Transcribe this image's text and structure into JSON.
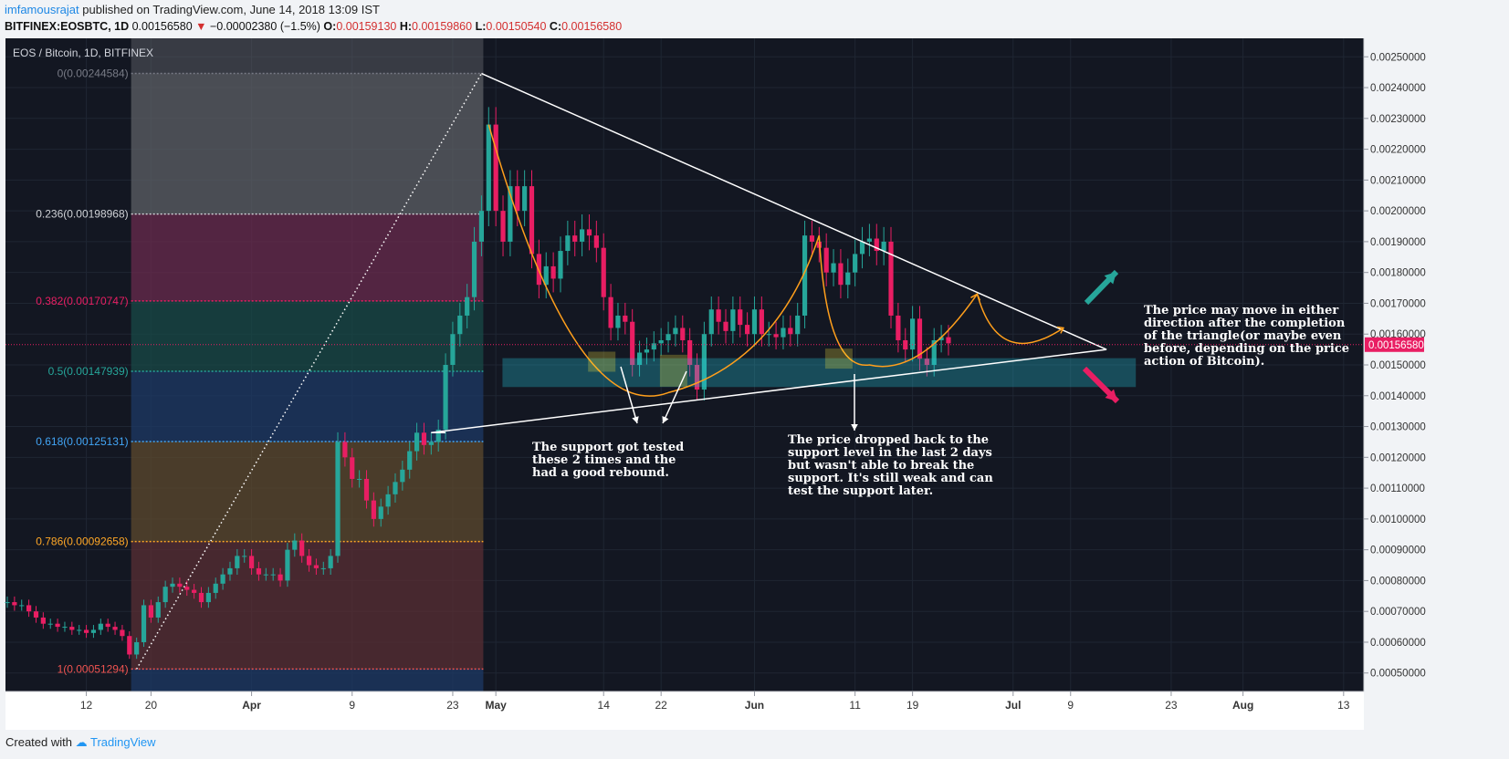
{
  "header": {
    "user": "imfamousrajat",
    "published": "published on TradingView.com, June 14, 2018 13:09 IST",
    "symbol": "BITFINEX:EOSBTC, 1D",
    "last": "0.00156580",
    "change": "−0.00002380 (−1.5%)",
    "o_label": "O:",
    "o": "0.00159130",
    "h_label": "H:",
    "h": "0.00159860",
    "l_label": "L:",
    "l": "0.00150540",
    "c_label": "C:",
    "c": "0.00156580"
  },
  "footer": {
    "created_with": "Created with",
    "brand": "TradingView"
  },
  "colors": {
    "background": "#131722",
    "up": "#26a69a",
    "down": "#e91e63",
    "trend": "#ffffff",
    "arc": "#ff9f1c",
    "support": "#26c6da",
    "highlight": "#ffeb3b"
  },
  "chart_data": {
    "type": "candlestick",
    "title": "EOS / Bitcoin, 1D, BITFINEX",
    "ylim": [
      0.00044,
      0.00256
    ],
    "yticks": [
      0.0005,
      0.0006,
      0.0007,
      0.0008,
      0.0009,
      0.001,
      0.0011,
      0.0012,
      0.0013,
      0.0014,
      0.0015,
      0.0016,
      0.0017,
      0.0018,
      0.0019,
      0.002,
      0.0021,
      0.0022,
      0.0023,
      0.0024,
      0.0025
    ],
    "ytick_labels": [
      "0.00050000",
      "0.00060000",
      "0.00070000",
      "0.00080000",
      "0.00090000",
      "0.00100000",
      "0.00110000",
      "0.00120000",
      "0.00130000",
      "0.00140000",
      "0.00150000",
      "0.00160000",
      "0.00170000",
      "0.00180000",
      "0.00190000",
      "0.00200000",
      "0.00210000",
      "0.00220000",
      "0.00230000",
      "0.00240000",
      "0.00250000"
    ],
    "current_price": "0.00156580",
    "xtick_labels": [
      "12",
      "20",
      "Apr",
      "9",
      "23",
      "May",
      "14",
      "22",
      "Jun",
      "11",
      "19",
      "Jul",
      "9",
      "23",
      "Aug",
      "13"
    ],
    "closes": [
      0.00073,
      0.00072,
      0.00072,
      0.0007,
      0.00068,
      0.00066,
      0.00066,
      0.00065,
      0.00065,
      0.00064,
      0.00064,
      0.00063,
      0.00064,
      0.00066,
      0.00065,
      0.00064,
      0.00062,
      0.00056,
      0.0006,
      0.00072,
      0.00068,
      0.00073,
      0.00078,
      0.00079,
      0.00078,
      0.00077,
      0.00076,
      0.00073,
      0.00076,
      0.00079,
      0.00082,
      0.00084,
      0.00088,
      0.00088,
      0.00084,
      0.00082,
      0.00082,
      0.00082,
      0.0008,
      0.0009,
      0.00093,
      0.00088,
      0.00085,
      0.00084,
      0.00084,
      0.00088,
      0.00125,
      0.0012,
      0.00113,
      0.00113,
      0.00106,
      0.001,
      0.00104,
      0.00108,
      0.00112,
      0.00116,
      0.00122,
      0.00128,
      0.00124,
      0.00125,
      0.00129,
      0.0015,
      0.0016,
      0.00166,
      0.00172,
      0.0019,
      0.002,
      0.00228,
      0.002,
      0.0019,
      0.00208,
      0.002,
      0.00208,
      0.00186,
      0.00176,
      0.00182,
      0.00178,
      0.00187,
      0.00192,
      0.0019,
      0.00194,
      0.00192,
      0.00188,
      0.00172,
      0.00162,
      0.00166,
      0.00164,
      0.0015,
      0.00154,
      0.00155,
      0.00157,
      0.00158,
      0.0016,
      0.00162,
      0.00158,
      0.0015,
      0.00142,
      0.0016,
      0.00168,
      0.00164,
      0.00161,
      0.00168,
      0.00163,
      0.0016,
      0.00168,
      0.0016,
      0.0016,
      0.00159,
      0.00162,
      0.0016,
      0.00166,
      0.00192,
      0.0019,
      0.00188,
      0.0018,
      0.00183,
      0.00176,
      0.0018,
      0.00186,
      0.0019,
      0.00191,
      0.00187,
      0.0019,
      0.00166,
      0.00158,
      0.00155,
      0.00165,
      0.00152,
      0.0015,
      0.00158,
      0.00159,
      0.00157
    ],
    "fibonacci": [
      {
        "label": "0(0.00244584)",
        "value": 0.00244584,
        "color": "#787b86"
      },
      {
        "label": "0.236(0.00198968)",
        "value": 0.00198968,
        "color": "#cfd2d6"
      },
      {
        "label": "0.382(0.00170747)",
        "value": 0.00170747,
        "color": "#e91e63"
      },
      {
        "label": "0.5(0.00147939)",
        "value": 0.00147939,
        "color": "#26a69a"
      },
      {
        "label": "0.618(0.00125131)",
        "value": 0.00125131,
        "color": "#42a5f5"
      },
      {
        "label": "0.786(0.00092658)",
        "value": 0.00092658,
        "color": "#ffa726"
      },
      {
        "label": "1(0.00051294)",
        "value": 0.00051294,
        "color": "#ef5350"
      }
    ],
    "annotations": [
      {
        "id": "support-note",
        "lines": [
          "The support got tested",
          "these 2 times and the",
          "had a good rebound."
        ]
      },
      {
        "id": "drop-note",
        "lines": [
          "The price dropped back to the",
          "support level in the last 2 days",
          "but wasn't able to break the",
          "support. It's still weak and can",
          "test the support later."
        ]
      },
      {
        "id": "direction-note",
        "lines": [
          "The price may move in either",
          "direction after the completion",
          "of the triangle(or maybe even",
          "before, depending on the price",
          "action of Bitcoin)."
        ]
      }
    ]
  }
}
